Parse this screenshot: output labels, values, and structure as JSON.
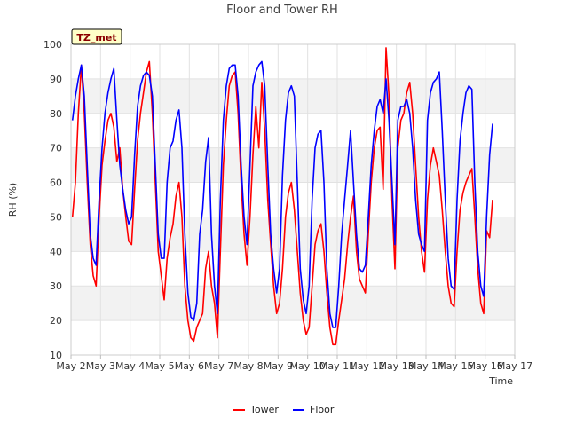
{
  "chart_data": {
    "type": "line",
    "title": "Floor and Tower RH",
    "xlabel": "Time",
    "ylabel": "RH (%)",
    "badge": "TZ_met",
    "ylim": [
      10,
      100
    ],
    "yticks": [
      10,
      20,
      30,
      40,
      50,
      60,
      70,
      80,
      90,
      100
    ],
    "xlim": [
      2,
      17
    ],
    "xticks": [
      {
        "value": 2,
        "label": "May 2"
      },
      {
        "value": 3,
        "label": "May 3"
      },
      {
        "value": 4,
        "label": "May 4"
      },
      {
        "value": 5,
        "label": "May 5"
      },
      {
        "value": 6,
        "label": "May 6"
      },
      {
        "value": 7,
        "label": "May 7"
      },
      {
        "value": 8,
        "label": "May 8"
      },
      {
        "value": 9,
        "label": "May 9"
      },
      {
        "value": 10,
        "label": "May 10"
      },
      {
        "value": 11,
        "label": "May 11"
      },
      {
        "value": 12,
        "label": "May 12"
      },
      {
        "value": 13,
        "label": "May 13"
      },
      {
        "value": 14,
        "label": "May 14"
      },
      {
        "value": 15,
        "label": "May 15"
      },
      {
        "value": 16,
        "label": "May 16"
      },
      {
        "value": 17,
        "label": "May 17"
      }
    ],
    "grid": true,
    "banded_background": true,
    "legend_position": "bottom-center",
    "series": [
      {
        "name": "Tower",
        "color": "#ff0000",
        "points": [
          [
            2.05,
            50
          ],
          [
            2.15,
            60
          ],
          [
            2.25,
            80
          ],
          [
            2.35,
            94
          ],
          [
            2.45,
            80
          ],
          [
            2.55,
            60
          ],
          [
            2.65,
            42
          ],
          [
            2.75,
            33
          ],
          [
            2.85,
            30
          ],
          [
            2.95,
            50
          ],
          [
            3.05,
            65
          ],
          [
            3.15,
            72
          ],
          [
            3.25,
            78
          ],
          [
            3.35,
            80
          ],
          [
            3.45,
            76
          ],
          [
            3.55,
            66
          ],
          [
            3.65,
            70
          ],
          [
            3.75,
            58
          ],
          [
            3.85,
            50
          ],
          [
            3.95,
            43
          ],
          [
            4.05,
            42
          ],
          [
            4.15,
            58
          ],
          [
            4.25,
            72
          ],
          [
            4.35,
            80
          ],
          [
            4.45,
            86
          ],
          [
            4.55,
            92
          ],
          [
            4.65,
            95
          ],
          [
            4.75,
            80
          ],
          [
            4.85,
            60
          ],
          [
            4.95,
            40
          ],
          [
            5.05,
            33
          ],
          [
            5.15,
            26
          ],
          [
            5.25,
            38
          ],
          [
            5.35,
            44
          ],
          [
            5.45,
            48
          ],
          [
            5.55,
            56
          ],
          [
            5.65,
            60
          ],
          [
            5.75,
            50
          ],
          [
            5.85,
            30
          ],
          [
            5.95,
            20
          ],
          [
            6.05,
            15
          ],
          [
            6.15,
            14
          ],
          [
            6.25,
            18
          ],
          [
            6.35,
            20
          ],
          [
            6.45,
            22
          ],
          [
            6.55,
            35
          ],
          [
            6.65,
            40
          ],
          [
            6.75,
            30
          ],
          [
            6.85,
            25
          ],
          [
            6.95,
            15
          ],
          [
            7.05,
            40
          ],
          [
            7.15,
            65
          ],
          [
            7.25,
            78
          ],
          [
            7.35,
            88
          ],
          [
            7.45,
            91
          ],
          [
            7.55,
            92
          ],
          [
            7.65,
            80
          ],
          [
            7.75,
            60
          ],
          [
            7.85,
            45
          ],
          [
            7.95,
            36
          ],
          [
            8.05,
            50
          ],
          [
            8.15,
            68
          ],
          [
            8.25,
            82
          ],
          [
            8.35,
            70
          ],
          [
            8.45,
            89
          ],
          [
            8.55,
            75
          ],
          [
            8.65,
            55
          ],
          [
            8.75,
            42
          ],
          [
            8.85,
            30
          ],
          [
            8.95,
            22
          ],
          [
            9.05,
            25
          ],
          [
            9.15,
            35
          ],
          [
            9.25,
            50
          ],
          [
            9.35,
            57
          ],
          [
            9.45,
            60
          ],
          [
            9.55,
            52
          ],
          [
            9.65,
            40
          ],
          [
            9.75,
            28
          ],
          [
            9.85,
            20
          ],
          [
            9.95,
            16
          ],
          [
            10.05,
            18
          ],
          [
            10.15,
            30
          ],
          [
            10.25,
            42
          ],
          [
            10.35,
            46
          ],
          [
            10.45,
            48
          ],
          [
            10.55,
            40
          ],
          [
            10.65,
            28
          ],
          [
            10.75,
            18
          ],
          [
            10.85,
            13
          ],
          [
            10.95,
            13
          ],
          [
            11.05,
            20
          ],
          [
            11.15,
            26
          ],
          [
            11.25,
            32
          ],
          [
            11.35,
            42
          ],
          [
            11.45,
            50
          ],
          [
            11.55,
            56
          ],
          [
            11.65,
            40
          ],
          [
            11.75,
            32
          ],
          [
            11.85,
            30
          ],
          [
            11.95,
            28
          ],
          [
            12.05,
            45
          ],
          [
            12.15,
            60
          ],
          [
            12.25,
            70
          ],
          [
            12.35,
            75
          ],
          [
            12.45,
            76
          ],
          [
            12.55,
            58
          ],
          [
            12.65,
            99
          ],
          [
            12.75,
            85
          ],
          [
            12.85,
            55
          ],
          [
            12.95,
            35
          ],
          [
            13.05,
            70
          ],
          [
            13.15,
            78
          ],
          [
            13.25,
            80
          ],
          [
            13.35,
            86
          ],
          [
            13.45,
            89
          ],
          [
            13.55,
            80
          ],
          [
            13.65,
            65
          ],
          [
            13.75,
            50
          ],
          [
            13.85,
            40
          ],
          [
            13.95,
            34
          ],
          [
            14.05,
            55
          ],
          [
            14.15,
            65
          ],
          [
            14.25,
            70
          ],
          [
            14.35,
            66
          ],
          [
            14.45,
            62
          ],
          [
            14.55,
            52
          ],
          [
            14.65,
            40
          ],
          [
            14.75,
            30
          ],
          [
            14.85,
            25
          ],
          [
            14.95,
            24
          ],
          [
            15.05,
            40
          ],
          [
            15.15,
            52
          ],
          [
            15.25,
            57
          ],
          [
            15.35,
            60
          ],
          [
            15.45,
            62
          ],
          [
            15.55,
            64
          ],
          [
            15.65,
            50
          ],
          [
            15.75,
            35
          ],
          [
            15.85,
            25
          ],
          [
            15.95,
            22
          ],
          [
            16.05,
            46
          ],
          [
            16.15,
            44
          ],
          [
            16.25,
            55
          ]
        ]
      },
      {
        "name": "Floor",
        "color": "#0000ff",
        "points": [
          [
            2.05,
            78
          ],
          [
            2.15,
            85
          ],
          [
            2.25,
            90
          ],
          [
            2.35,
            94
          ],
          [
            2.45,
            85
          ],
          [
            2.55,
            65
          ],
          [
            2.65,
            45
          ],
          [
            2.75,
            38
          ],
          [
            2.85,
            36
          ],
          [
            2.95,
            55
          ],
          [
            3.05,
            70
          ],
          [
            3.15,
            80
          ],
          [
            3.25,
            86
          ],
          [
            3.35,
            90
          ],
          [
            3.45,
            93
          ],
          [
            3.55,
            78
          ],
          [
            3.65,
            65
          ],
          [
            3.75,
            58
          ],
          [
            3.85,
            52
          ],
          [
            3.95,
            48
          ],
          [
            4.05,
            50
          ],
          [
            4.15,
            68
          ],
          [
            4.25,
            82
          ],
          [
            4.35,
            88
          ],
          [
            4.45,
            91
          ],
          [
            4.55,
            92
          ],
          [
            4.65,
            91
          ],
          [
            4.75,
            85
          ],
          [
            4.85,
            65
          ],
          [
            4.95,
            45
          ],
          [
            5.05,
            38
          ],
          [
            5.15,
            38
          ],
          [
            5.25,
            60
          ],
          [
            5.35,
            70
          ],
          [
            5.45,
            72
          ],
          [
            5.55,
            78
          ],
          [
            5.65,
            81
          ],
          [
            5.75,
            70
          ],
          [
            5.85,
            45
          ],
          [
            5.95,
            28
          ],
          [
            6.05,
            21
          ],
          [
            6.15,
            20
          ],
          [
            6.25,
            25
          ],
          [
            6.35,
            45
          ],
          [
            6.45,
            52
          ],
          [
            6.55,
            66
          ],
          [
            6.65,
            73
          ],
          [
            6.75,
            45
          ],
          [
            6.85,
            30
          ],
          [
            6.95,
            22
          ],
          [
            7.05,
            55
          ],
          [
            7.15,
            78
          ],
          [
            7.25,
            88
          ],
          [
            7.35,
            93
          ],
          [
            7.45,
            94
          ],
          [
            7.55,
            94
          ],
          [
            7.65,
            85
          ],
          [
            7.75,
            65
          ],
          [
            7.85,
            50
          ],
          [
            7.95,
            42
          ],
          [
            8.05,
            65
          ],
          [
            8.15,
            88
          ],
          [
            8.25,
            92
          ],
          [
            8.35,
            94
          ],
          [
            8.45,
            95
          ],
          [
            8.55,
            88
          ],
          [
            8.65,
            65
          ],
          [
            8.75,
            45
          ],
          [
            8.85,
            35
          ],
          [
            8.95,
            28
          ],
          [
            9.05,
            35
          ],
          [
            9.15,
            62
          ],
          [
            9.25,
            78
          ],
          [
            9.35,
            86
          ],
          [
            9.45,
            88
          ],
          [
            9.55,
            85
          ],
          [
            9.65,
            60
          ],
          [
            9.75,
            35
          ],
          [
            9.85,
            26
          ],
          [
            9.95,
            22
          ],
          [
            10.05,
            30
          ],
          [
            10.15,
            55
          ],
          [
            10.25,
            70
          ],
          [
            10.35,
            74
          ],
          [
            10.45,
            75
          ],
          [
            10.55,
            60
          ],
          [
            10.65,
            35
          ],
          [
            10.75,
            22
          ],
          [
            10.85,
            18
          ],
          [
            10.95,
            18
          ],
          [
            11.05,
            30
          ],
          [
            11.15,
            45
          ],
          [
            11.25,
            55
          ],
          [
            11.35,
            65
          ],
          [
            11.45,
            75
          ],
          [
            11.55,
            60
          ],
          [
            11.65,
            45
          ],
          [
            11.75,
            35
          ],
          [
            11.85,
            34
          ],
          [
            11.95,
            36
          ],
          [
            12.05,
            50
          ],
          [
            12.15,
            65
          ],
          [
            12.25,
            75
          ],
          [
            12.35,
            82
          ],
          [
            12.45,
            84
          ],
          [
            12.55,
            80
          ],
          [
            12.65,
            90
          ],
          [
            12.75,
            78
          ],
          [
            12.85,
            60
          ],
          [
            12.95,
            42
          ],
          [
            13.05,
            78
          ],
          [
            13.15,
            82
          ],
          [
            13.25,
            82
          ],
          [
            13.35,
            84
          ],
          [
            13.45,
            80
          ],
          [
            13.55,
            70
          ],
          [
            13.65,
            55
          ],
          [
            13.75,
            45
          ],
          [
            13.85,
            42
          ],
          [
            13.95,
            40
          ],
          [
            14.05,
            78
          ],
          [
            14.15,
            86
          ],
          [
            14.25,
            89
          ],
          [
            14.35,
            90
          ],
          [
            14.45,
            92
          ],
          [
            14.55,
            75
          ],
          [
            14.65,
            55
          ],
          [
            14.75,
            38
          ],
          [
            14.85,
            30
          ],
          [
            14.95,
            29
          ],
          [
            15.05,
            55
          ],
          [
            15.15,
            72
          ],
          [
            15.25,
            80
          ],
          [
            15.35,
            86
          ],
          [
            15.45,
            88
          ],
          [
            15.55,
            87
          ],
          [
            15.65,
            60
          ],
          [
            15.75,
            40
          ],
          [
            15.85,
            30
          ],
          [
            15.95,
            27
          ],
          [
            16.05,
            50
          ],
          [
            16.15,
            68
          ],
          [
            16.25,
            77
          ]
        ]
      }
    ]
  }
}
